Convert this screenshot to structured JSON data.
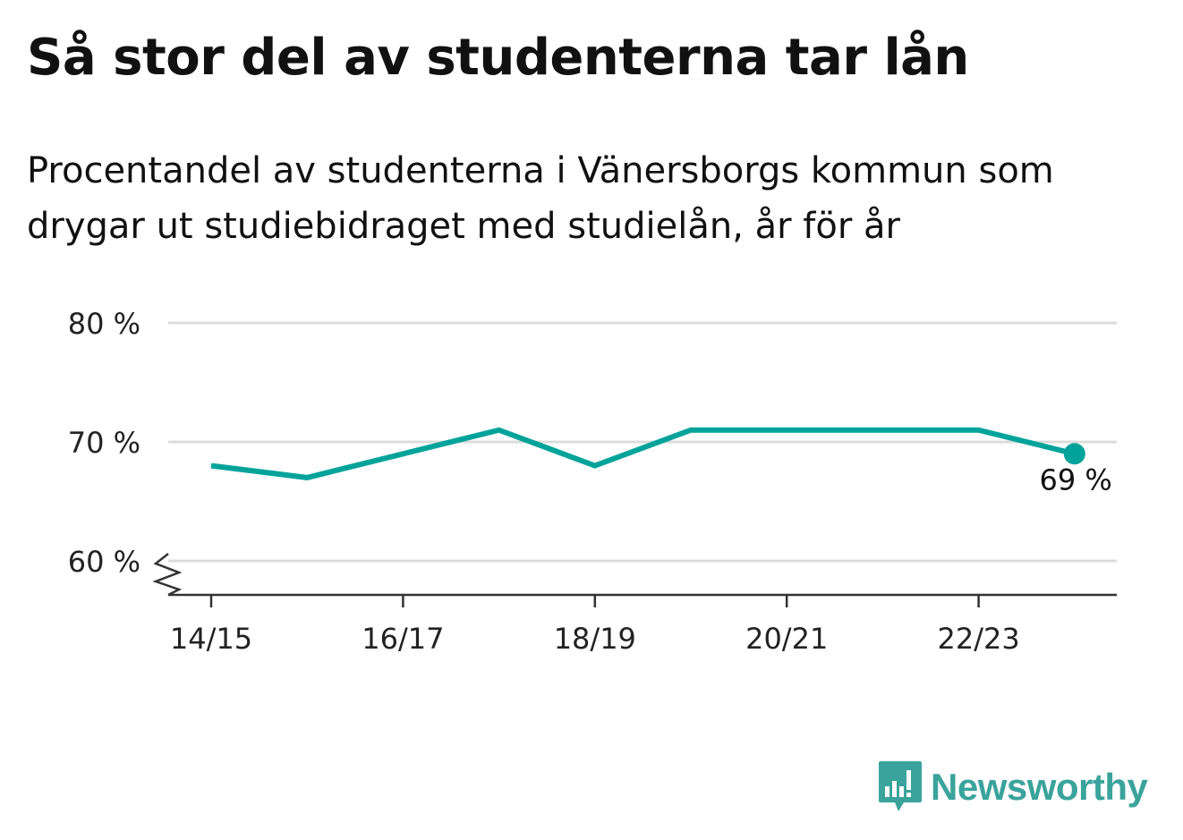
{
  "header": {
    "title": "Så stor del av studenterna tar lån",
    "subtitle": "Procentandel av studenterna i Vänersborgs kommun som drygar ut studiebidraget med studielån, år för år"
  },
  "chart_data": {
    "type": "line",
    "x": [
      "14/15",
      "15/16",
      "16/17",
      "17/18",
      "18/19",
      "19/20",
      "20/21",
      "21/22",
      "22/23",
      "23/24"
    ],
    "x_tick_labels": [
      "14/15",
      "16/17",
      "18/19",
      "20/21",
      "22/23"
    ],
    "series": [
      {
        "values": [
          68,
          67,
          69,
          71,
          68,
          71,
          71,
          71,
          71,
          69
        ]
      }
    ],
    "y_ticks": [
      60,
      70,
      80
    ],
    "y_tick_labels": [
      "60 %",
      "70 %",
      "80 %"
    ],
    "ylim": [
      60,
      80
    ],
    "y_axis_break": true,
    "end_label": "69 %",
    "grid": true,
    "colors": {
      "line": "#00a39a",
      "grid": "#dcdcdc",
      "axis": "#333333",
      "text": "#222222"
    }
  },
  "branding": {
    "name": "Newsworthy",
    "icon": "newsworthy-logo-icon",
    "color": "#3aa39b"
  }
}
